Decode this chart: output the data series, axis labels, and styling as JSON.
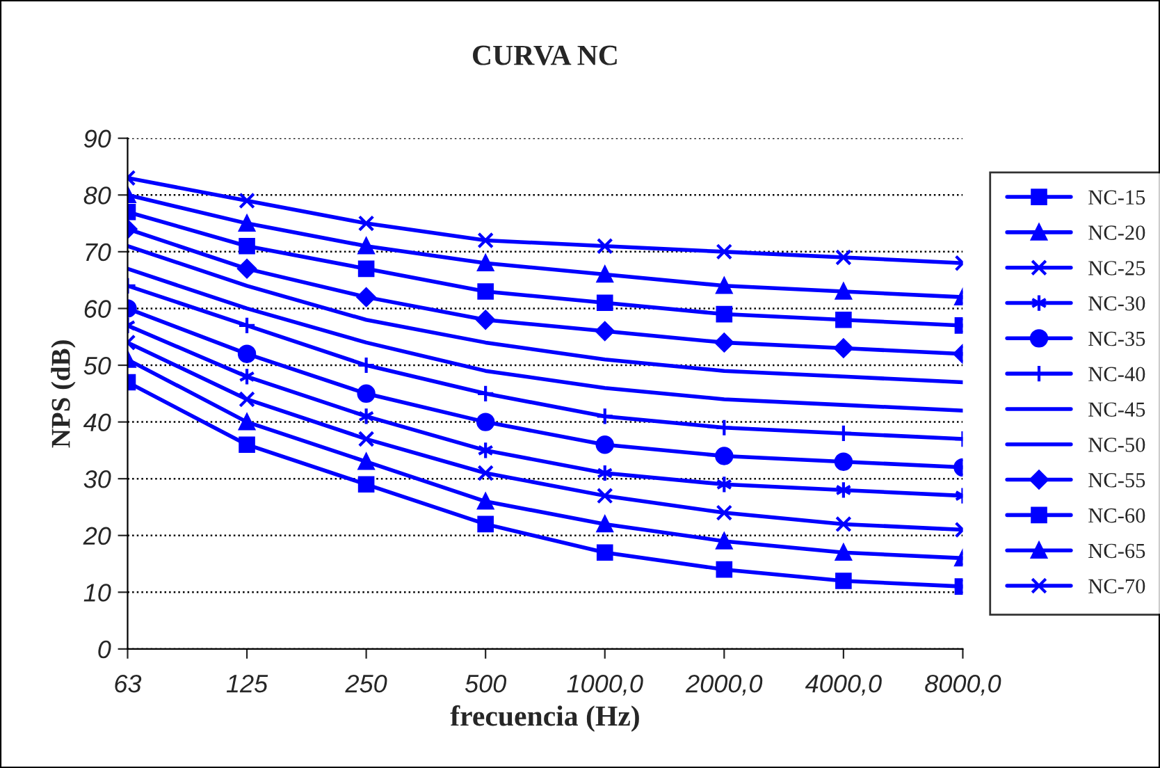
{
  "chart_data": {
    "type": "line",
    "title": "CURVA NC",
    "xlabel": "frecuencia (Hz)",
    "ylabel": "NPS (dB)",
    "categories": [
      "63",
      "125",
      "250",
      "500",
      "1000,0",
      "2000,0",
      "4000,0",
      "8000,0"
    ],
    "ylim": [
      0,
      90
    ],
    "yticks": [
      0,
      10,
      20,
      30,
      40,
      50,
      60,
      70,
      80,
      90
    ],
    "grid": "y",
    "legend": "right",
    "line_style": "solid",
    "series": [
      {
        "name": "NC-15",
        "color": "#0000ff",
        "marker": "square",
        "values": [
          47,
          36,
          29,
          22,
          17,
          14,
          12,
          11
        ]
      },
      {
        "name": "NC-20",
        "color": "#0000ff",
        "marker": "triangle",
        "values": [
          51,
          40,
          33,
          26,
          22,
          19,
          17,
          16
        ]
      },
      {
        "name": "NC-25",
        "color": "#0000ff",
        "marker": "cross",
        "values": [
          54,
          44,
          37,
          31,
          27,
          24,
          22,
          21
        ]
      },
      {
        "name": "NC-30",
        "color": "#0000ff",
        "marker": "cross",
        "values": [
          57,
          48,
          41,
          35,
          31,
          29,
          28,
          27
        ]
      },
      {
        "name": "NC-35",
        "color": "#0000ff",
        "marker": "circle",
        "values": [
          60,
          52,
          45,
          40,
          36,
          34,
          33,
          32
        ]
      },
      {
        "name": "NC-40",
        "color": "#0000ff",
        "marker": "plus",
        "values": [
          64,
          57,
          50,
          45,
          41,
          39,
          38,
          37
        ]
      },
      {
        "name": "NC-45",
        "color": "#0000ff",
        "marker": "none",
        "values": [
          67,
          60,
          54,
          49,
          46,
          44,
          43,
          42
        ]
      },
      {
        "name": "NC-50",
        "color": "#0000ff",
        "marker": "none",
        "values": [
          71,
          64,
          58,
          54,
          51,
          49,
          48,
          47
        ]
      },
      {
        "name": "NC-55",
        "color": "#0000ff",
        "marker": "diamond",
        "values": [
          74,
          67,
          62,
          58,
          56,
          54,
          53,
          52
        ]
      },
      {
        "name": "NC-60",
        "color": "#0000ff",
        "marker": "square",
        "values": [
          77,
          71,
          67,
          63,
          61,
          59,
          58,
          57
        ]
      },
      {
        "name": "NC-65",
        "color": "#0000ff",
        "marker": "triangle",
        "values": [
          80,
          75,
          71,
          68,
          66,
          64,
          63,
          62
        ]
      },
      {
        "name": "NC-70",
        "color": "#0000ff",
        "marker": "cross",
        "values": [
          83,
          79,
          75,
          72,
          71,
          70,
          69,
          68
        ]
      }
    ]
  }
}
